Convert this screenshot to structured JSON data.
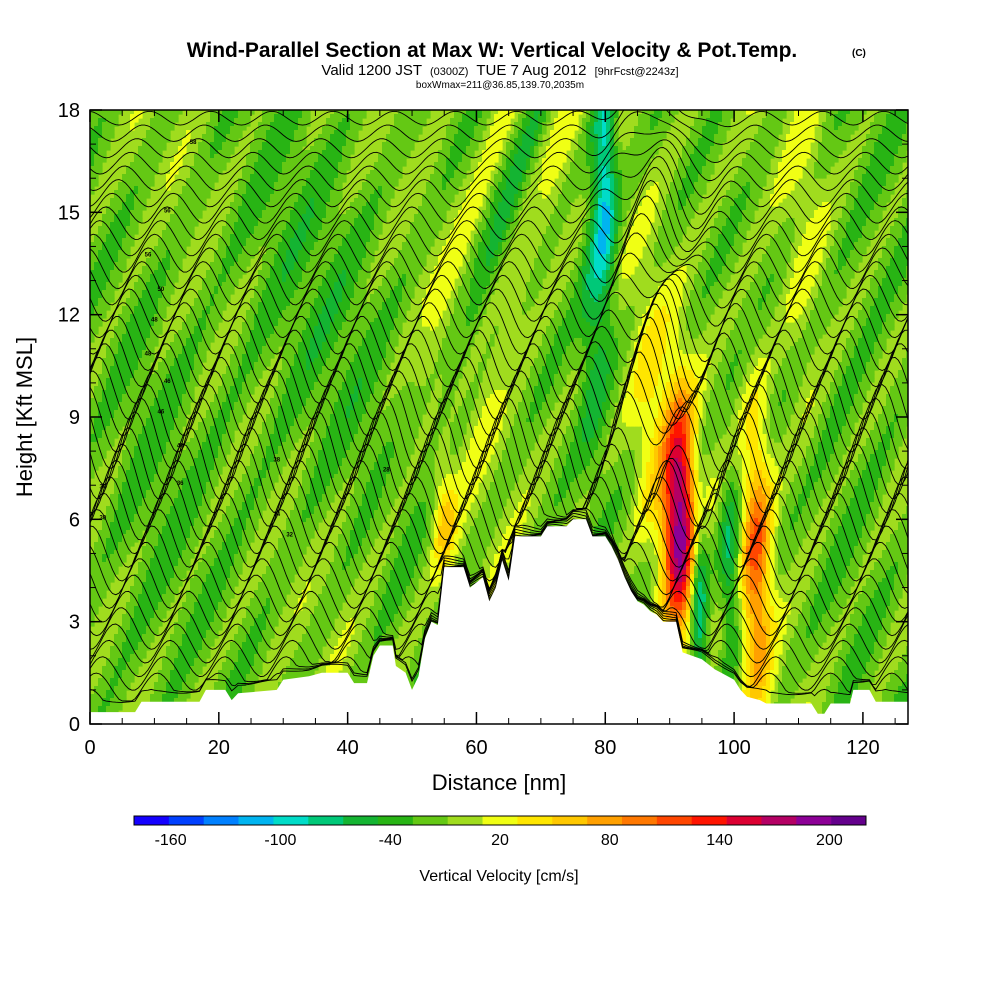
{
  "chart_data": {
    "type": "heatmap",
    "title": "Wind-Parallel Section at Max W: Vertical Velocity & Pot.Temp.",
    "title_mark": "(C)",
    "subtitle_line1": "Valid 1200 JST",
    "subtitle_zulu": "(0300Z)",
    "subtitle_date": "TUE 7 Aug 2012",
    "subtitle_fcst": "[9hrFcst@2243z]",
    "subtitle_line2": "boxWmax=211@36.85,139.70,2035m",
    "xlabel": "Distance [nm]",
    "ylabel": "Height [Kft MSL]",
    "xlim": [
      0,
      127
    ],
    "ylim": [
      0,
      18
    ],
    "xticks": [
      "0",
      "20",
      "40",
      "60",
      "80",
      "100",
      "120"
    ],
    "yticks": [
      "0",
      "3",
      "6",
      "9",
      "12",
      "15",
      "18"
    ],
    "colorbar": {
      "label": "Vertical Velocity [cm/s]",
      "levels": [
        -180,
        -160,
        -140,
        -120,
        -100,
        -80,
        -60,
        -40,
        -20,
        0,
        20,
        40,
        60,
        80,
        100,
        120,
        140,
        160,
        180,
        200,
        220
      ],
      "tick_labels": [
        "-160",
        "-100",
        "-40",
        "20",
        "80",
        "140",
        "200"
      ],
      "tick_values": [
        -160,
        -100,
        -40,
        20,
        80,
        140,
        200
      ],
      "colors": [
        "#1400ff",
        "#0040ff",
        "#0080ff",
        "#00b4f0",
        "#00dcc8",
        "#00c878",
        "#14b432",
        "#28b414",
        "#64c814",
        "#a0dc1e",
        "#f0ff14",
        "#ffe600",
        "#ffc800",
        "#ffa000",
        "#ff7800",
        "#ff4600",
        "#ff1400",
        "#dc0032",
        "#b40064",
        "#8c0096",
        "#64008c"
      ]
    },
    "terrain_kft": [
      [
        0,
        0.35
      ],
      [
        7,
        0.35
      ],
      [
        8,
        0.65
      ],
      [
        17,
        0.65
      ],
      [
        18,
        1.0
      ],
      [
        21,
        1.0
      ],
      [
        22,
        0.7
      ],
      [
        23,
        0.9
      ],
      [
        29,
        1.0
      ],
      [
        30,
        1.3
      ],
      [
        34,
        1.4
      ],
      [
        36,
        1.5
      ],
      [
        40,
        1.5
      ],
      [
        41,
        1.2
      ],
      [
        43,
        1.2
      ],
      [
        44,
        2.0
      ],
      [
        45,
        2.3
      ],
      [
        47,
        2.3
      ],
      [
        47.5,
        1.7
      ],
      [
        49,
        1.5
      ],
      [
        50,
        1.0
      ],
      [
        51,
        1.4
      ],
      [
        52,
        2.5
      ],
      [
        53,
        3.0
      ],
      [
        54,
        2.9
      ],
      [
        55,
        4.6
      ],
      [
        58,
        4.6
      ],
      [
        59,
        4.0
      ],
      [
        61,
        4.3
      ],
      [
        62,
        3.6
      ],
      [
        63,
        4.0
      ],
      [
        64,
        4.8
      ],
      [
        65,
        4.2
      ],
      [
        66,
        5.5
      ],
      [
        70,
        5.5
      ],
      [
        71,
        5.8
      ],
      [
        74,
        5.8
      ],
      [
        75,
        6.0
      ],
      [
        77,
        6.0
      ],
      [
        78,
        5.5
      ],
      [
        80,
        5.5
      ],
      [
        81,
        5.2
      ],
      [
        82,
        4.8
      ],
      [
        83,
        4.3
      ],
      [
        84,
        3.9
      ],
      [
        85,
        3.6
      ],
      [
        86,
        3.5
      ],
      [
        87,
        3.3
      ],
      [
        88,
        3.2
      ],
      [
        89,
        3.0
      ],
      [
        91,
        3.0
      ],
      [
        92,
        2.1
      ],
      [
        95,
        1.9
      ],
      [
        97,
        1.6
      ],
      [
        98,
        1.5
      ],
      [
        100,
        1.3
      ],
      [
        101,
        1.0
      ],
      [
        102,
        0.8
      ],
      [
        104,
        0.7
      ],
      [
        105,
        0.6
      ],
      [
        112,
        0.6
      ],
      [
        113,
        0.3
      ],
      [
        114,
        0.3
      ],
      [
        115,
        0.6
      ],
      [
        118,
        0.6
      ],
      [
        118.5,
        1.0
      ],
      [
        121,
        1.0
      ],
      [
        122,
        0.65
      ],
      [
        127,
        0.65
      ]
    ],
    "theta_labels": [
      "58",
      "56",
      "56",
      "50",
      "48",
      "48",
      "46",
      "46",
      "40",
      "38",
      "36",
      "34",
      "32",
      "30",
      "30",
      "28"
    ]
  }
}
